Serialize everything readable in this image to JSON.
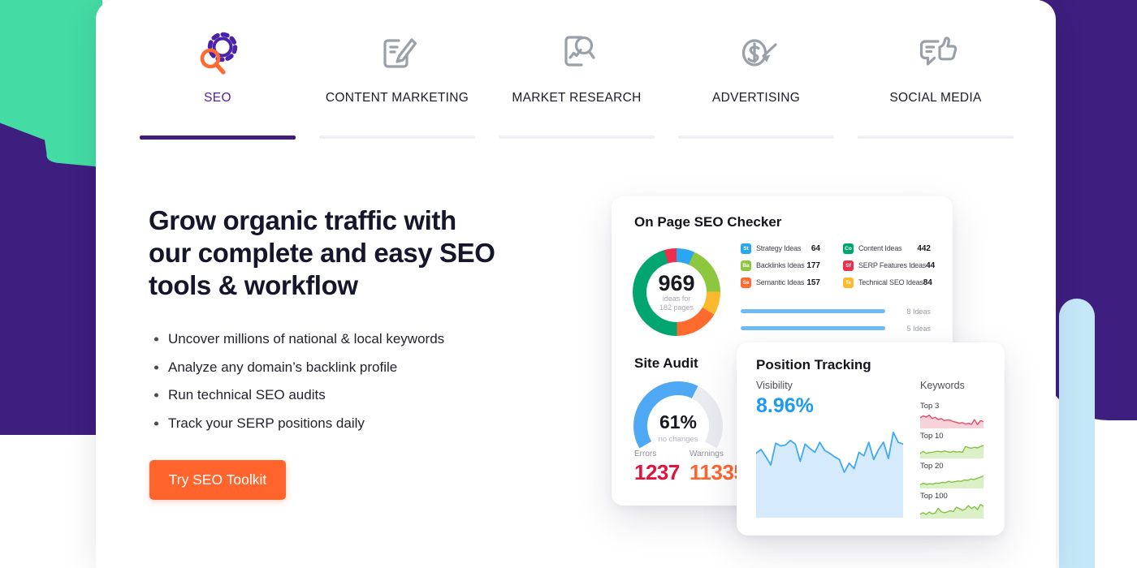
{
  "page": {
    "bg_purple": "#3E1E7E",
    "bg_green": "#44DBA4",
    "bg_lightblue": "#C5E8F9",
    "accent_orange": "#FF642D"
  },
  "tabs": [
    {
      "label": "SEO",
      "active": true
    },
    {
      "label": "CONTENT MARKETING",
      "active": false
    },
    {
      "label": "MARKET RESEARCH",
      "active": false
    },
    {
      "label": "ADVERTISING",
      "active": false
    },
    {
      "label": "SOCIAL MEDIA",
      "active": false
    }
  ],
  "hero": {
    "title_lines": [
      "Grow organic traffic with",
      "our complete and easy SEO",
      "tools & workflow"
    ],
    "bullets": [
      "Uncover millions of national & local keywords",
      "Analyze any domain’s backlink profile",
      "Run technical SEO audits",
      "Track your SERP positions daily"
    ],
    "cta_label": "Try SEO Toolkit"
  },
  "onpage_checker": {
    "title": "On Page SEO Checker"
  },
  "site_audit": {
    "title": "Site Audit",
    "errors_label": "Errors",
    "errors_value": "1237",
    "warnings_label": "Warnings",
    "warnings_value": "11335"
  },
  "position_tracking": {
    "title": "Position Tracking",
    "visibility_label": "Visibility",
    "visibility_value": "8.96%",
    "keywords_label": "Keywords"
  },
  "chart_data": [
    {
      "id": "onpage-ideas-donut",
      "type": "pie",
      "center_value": "969",
      "center_caption_1": "ideas for",
      "center_caption_2": "182 pages",
      "segments": [
        {
          "abbr": "St",
          "label": "Strategy Ideas",
          "value": 64,
          "color": "#2AA7F0"
        },
        {
          "abbr": "Ba",
          "label": "Backlinks Ideas",
          "value": 177,
          "color": "#8DC63F"
        },
        {
          "abbr": "Se",
          "label": "Semantic Ideas",
          "value": 157,
          "color": "#FF6A2E"
        },
        {
          "abbr": "Co",
          "label": "Content Ideas",
          "value": 442,
          "color": "#00A570"
        },
        {
          "abbr": "Sf",
          "label": "SERP Features Ideas",
          "value": 44,
          "color": "#ED2E4C"
        },
        {
          "abbr": "Te",
          "label": "Technical SEO Ideas",
          "value": 84,
          "color": "#FDB92E"
        }
      ],
      "draw_order": [
        0,
        1,
        5,
        2,
        3,
        4
      ]
    },
    {
      "id": "idea-progress-bars",
      "type": "bar",
      "color": "#6FBBF2",
      "items": [
        {
          "label": "8 Ideas",
          "pct": 100
        },
        {
          "label": "5 Ideas",
          "pct": 100
        }
      ]
    },
    {
      "id": "site-audit-gauge",
      "type": "gauge",
      "value": 61,
      "value_label": "61%",
      "note": "no changes",
      "arc_span_deg": 240,
      "start_deg": 240,
      "color": "#4FA8F4",
      "track": "#E9EBF0"
    },
    {
      "id": "visibility-trend",
      "type": "area",
      "stroke": "#3FA9F2",
      "fill": "#D5EAFA",
      "scale": "normalized 0-100",
      "points": [
        71,
        75,
        67,
        58,
        82,
        79,
        80,
        85,
        81,
        62,
        81,
        76,
        72,
        83,
        74,
        71,
        67,
        64,
        50,
        60,
        54,
        72,
        68,
        83,
        64,
        75,
        83,
        65,
        94,
        83,
        81
      ]
    },
    {
      "id": "keywords-sparklines",
      "type": "area",
      "scale": "normalized 0-100",
      "series": [
        {
          "name": "Top 3",
          "stroke": "#E44E66",
          "fill": "#F6D3D9",
          "points": [
            62,
            74,
            66,
            78,
            58,
            66,
            52,
            58,
            46,
            50,
            48,
            40,
            36,
            30,
            34,
            26,
            30,
            24,
            52,
            22,
            46,
            40
          ]
        },
        {
          "name": "Top 10",
          "stroke": "#82C341",
          "fill": "#DCF0C8",
          "points": [
            28,
            42,
            30,
            34,
            36,
            40,
            42,
            38,
            44,
            40,
            36,
            42,
            38,
            40,
            36,
            70,
            64,
            60,
            66,
            62,
            70,
            76
          ]
        },
        {
          "name": "Top 20",
          "stroke": "#82C341",
          "fill": "#DCF0C8",
          "points": [
            22,
            30,
            24,
            28,
            26,
            32,
            30,
            36,
            34,
            42,
            36,
            40,
            44,
            42,
            50,
            48,
            56,
            52,
            60,
            66,
            74
          ]
        },
        {
          "name": "Top 100",
          "stroke": "#82C341",
          "fill": "#DCF0C8",
          "points": [
            26,
            34,
            24,
            38,
            28,
            32,
            60,
            40,
            34,
            38,
            46,
            40,
            66,
            58,
            48,
            56,
            76,
            58,
            70,
            52,
            82,
            72
          ]
        }
      ]
    }
  ]
}
